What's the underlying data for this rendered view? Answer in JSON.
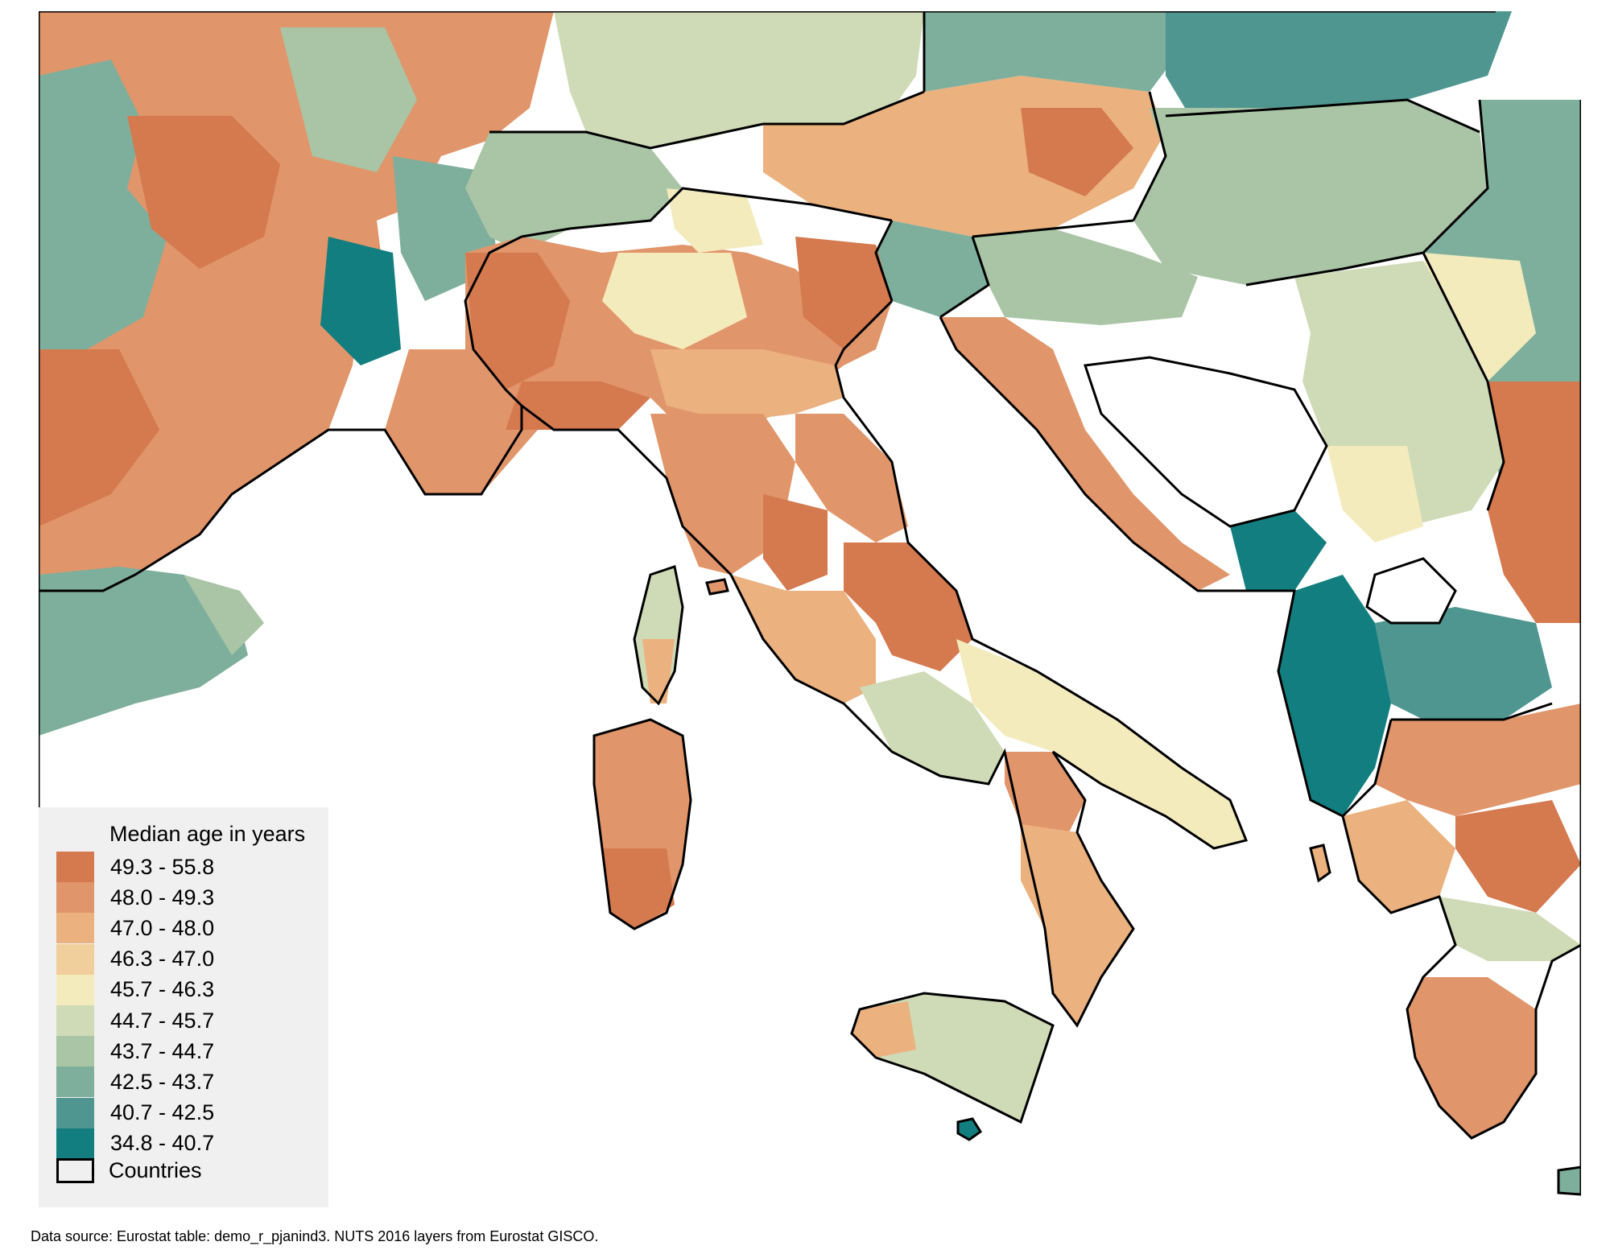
{
  "legend": {
    "title": "Median age in years",
    "classes": [
      {
        "label": "49.3 - 55.8",
        "color": "#d5794f"
      },
      {
        "label": "48.0 - 49.3",
        "color": "#e1956a"
      },
      {
        "label": "47.0 - 48.0",
        "color": "#ebb17f"
      },
      {
        "label": "46.3 - 47.0",
        "color": "#f1cf9c"
      },
      {
        "label": "45.7 - 46.3",
        "color": "#f4ebbd"
      },
      {
        "label": "44.7 - 45.7",
        "color": "#cfdbb6"
      },
      {
        "label": "43.7 - 44.7",
        "color": "#a9c5a5"
      },
      {
        "label": "42.5 - 43.7",
        "color": "#7eaf9c"
      },
      {
        "label": "40.7 - 42.5",
        "color": "#4f9690"
      },
      {
        "label": "34.8 - 40.7",
        "color": "#137e7f"
      }
    ],
    "countries_label": "Countries"
  },
  "source_note": "Data source: Eurostat table: demo_r_pjanind3. NUTS 2016 layers from Eurostat GISCO.",
  "colors": {
    "sea": "#ffffff",
    "border": "#000000",
    "region_line": "#ffffff"
  }
}
